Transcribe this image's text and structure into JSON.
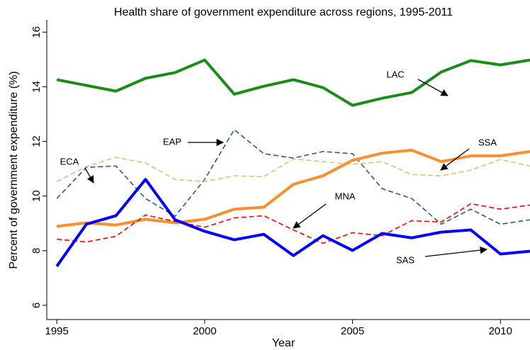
{
  "chart_data": {
    "type": "line",
    "title": "Health share of government expenditure across regions, 1995-2011",
    "xlabel": "Year",
    "ylabel": "Percent of government expenditure (%)",
    "x": [
      1995,
      1996,
      1997,
      1998,
      1999,
      2000,
      2001,
      2002,
      2003,
      2004,
      2005,
      2006,
      2007,
      2008,
      2009,
      2010,
      2011
    ],
    "xlim": [
      1994.66,
      2011
    ],
    "xticks": [
      1995,
      2000,
      2005,
      2010
    ],
    "ylim": [
      5.48,
      16.45
    ],
    "yticks": [
      6,
      8,
      10,
      12,
      14,
      16
    ],
    "grid": false,
    "series": [
      {
        "name": "LAC",
        "color": "#1a8c1a",
        "style": "solid",
        "width": 4,
        "values": [
          14.26,
          14.05,
          13.84,
          14.31,
          14.52,
          14.98,
          13.73,
          14.02,
          14.26,
          13.97,
          13.32,
          13.58,
          13.79,
          14.54,
          14.96,
          14.8,
          14.98
        ]
      },
      {
        "name": "EAP",
        "color": "#2f5a7b",
        "style": "dashed",
        "width": 1.6,
        "values": [
          9.91,
          11.05,
          11.1,
          9.91,
          9.26,
          10.61,
          12.43,
          11.55,
          11.39,
          11.63,
          11.55,
          10.27,
          9.91,
          8.97,
          9.52,
          8.97,
          9.13
        ]
      },
      {
        "name": "ECA",
        "color": "#dcc17a",
        "style": "dashed",
        "width": 1.6,
        "values": [
          10.53,
          11.08,
          11.42,
          11.21,
          10.61,
          10.53,
          10.74,
          10.71,
          11.36,
          11.26,
          11.16,
          11.26,
          10.79,
          10.74,
          10.95,
          11.34,
          11.1
        ]
      },
      {
        "name": "SSA",
        "color": "#f7902f",
        "style": "solid",
        "width": 4,
        "values": [
          8.89,
          9.02,
          8.94,
          9.15,
          9.02,
          9.15,
          9.52,
          9.59,
          10.43,
          10.74,
          11.31,
          11.57,
          11.68,
          11.26,
          11.47,
          11.47,
          11.63
        ]
      },
      {
        "name": "MNA",
        "color": "#ff0000",
        "style": "dashed",
        "width": 1.6,
        "values": [
          8.42,
          8.32,
          8.53,
          9.31,
          9.07,
          8.86,
          9.2,
          9.28,
          8.76,
          8.27,
          8.66,
          8.55,
          9.1,
          9.05,
          9.72,
          9.52,
          9.67
        ]
      },
      {
        "name": "SAS",
        "color": "#0000ff",
        "style": "solid",
        "width": 4,
        "values": [
          7.43,
          8.97,
          9.28,
          10.61,
          9.13,
          8.71,
          8.4,
          8.6,
          7.82,
          8.55,
          8.01,
          8.63,
          8.47,
          8.68,
          8.76,
          7.88,
          7.98
        ]
      }
    ]
  }
}
